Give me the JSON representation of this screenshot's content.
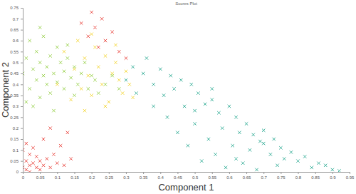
{
  "chart_data": {
    "type": "scatter",
    "title": "Scores Plot",
    "x_label": "Component 1",
    "y_label": "Component 2",
    "xlim": [
      0,
      0.95
    ],
    "ylim": [
      0,
      0.75
    ],
    "xticks": [
      0,
      0.05,
      0.1,
      0.15,
      0.2,
      0.25,
      0.3,
      0.35,
      0.4,
      0.45,
      0.5,
      0.55,
      0.6,
      0.65,
      0.7,
      0.75,
      0.8,
      0.85,
      0.9,
      0.95
    ],
    "yticks": [
      0,
      0.05,
      0.1,
      0.15,
      0.2,
      0.25,
      0.3,
      0.35,
      0.4,
      0.45,
      0.5,
      0.55,
      0.6,
      0.65,
      0.7,
      0.75
    ],
    "grid": false,
    "marker": "x",
    "series": [
      {
        "color": "#e8352e",
        "x": [
          0.0,
          0.0,
          0.01,
          0.01,
          0.01,
          0.02,
          0.02,
          0.02,
          0.03,
          0.03,
          0.04,
          0.04,
          0.05,
          0.05,
          0.06,
          0.07,
          0.08,
          0.09,
          0.1,
          0.12,
          0.14,
          0.06,
          0.08,
          0.11,
          0.13,
          0.17,
          0.19,
          0.2,
          0.21,
          0.22,
          0.24,
          0.26,
          0.28,
          0.3,
          0.23
        ],
        "values": [
          0.02,
          0.1,
          0.01,
          0.05,
          0.13,
          0.03,
          0.08,
          0.0,
          0.04,
          0.11,
          0.02,
          0.07,
          0.05,
          0.01,
          0.03,
          0.06,
          0.02,
          0.08,
          0.04,
          0.03,
          0.06,
          0.15,
          0.2,
          0.12,
          0.18,
          0.68,
          0.62,
          0.73,
          0.66,
          0.57,
          0.6,
          0.64,
          0.55,
          0.52,
          0.7
        ]
      },
      {
        "color": "#1fa58c",
        "x": [
          0.3,
          0.32,
          0.33,
          0.35,
          0.36,
          0.38,
          0.38,
          0.4,
          0.41,
          0.42,
          0.43,
          0.44,
          0.45,
          0.46,
          0.47,
          0.48,
          0.49,
          0.5,
          0.51,
          0.52,
          0.53,
          0.54,
          0.55,
          0.56,
          0.57,
          0.58,
          0.59,
          0.6,
          0.61,
          0.62,
          0.63,
          0.64,
          0.65,
          0.66,
          0.67,
          0.68,
          0.69,
          0.7,
          0.72,
          0.73,
          0.74,
          0.75,
          0.76,
          0.78,
          0.8,
          0.82,
          0.84,
          0.86,
          0.88,
          0.9,
          0.92,
          0.5,
          0.55,
          0.62,
          0.7
        ],
        "values": [
          0.42,
          0.48,
          0.36,
          0.45,
          0.52,
          0.4,
          0.3,
          0.47,
          0.35,
          0.25,
          0.44,
          0.38,
          0.18,
          0.42,
          0.3,
          0.12,
          0.4,
          0.22,
          0.36,
          0.05,
          0.31,
          0.15,
          0.33,
          0.08,
          0.27,
          0.2,
          0.02,
          0.3,
          0.12,
          0.25,
          0.18,
          0.04,
          0.22,
          0.1,
          0.17,
          0.01,
          0.14,
          0.19,
          0.08,
          0.15,
          0.03,
          0.11,
          0.06,
          0.09,
          0.05,
          0.07,
          0.02,
          0.04,
          0.03,
          0.01,
          0.005,
          0.28,
          0.38,
          0.06,
          0.13
        ]
      },
      {
        "color": "#f2d224",
        "x": [
          0.1,
          0.12,
          0.14,
          0.15,
          0.16,
          0.17,
          0.18,
          0.19,
          0.2,
          0.21,
          0.22,
          0.23,
          0.24,
          0.25,
          0.26,
          0.27,
          0.28,
          0.29,
          0.3,
          0.31,
          0.32,
          0.2,
          0.24,
          0.27,
          0.18
        ],
        "values": [
          0.4,
          0.55,
          0.33,
          0.47,
          0.6,
          0.38,
          0.52,
          0.44,
          0.35,
          0.57,
          0.48,
          0.4,
          0.53,
          0.32,
          0.45,
          0.5,
          0.42,
          0.36,
          0.46,
          0.4,
          0.34,
          0.63,
          0.3,
          0.58,
          0.28
        ]
      },
      {
        "color": "#8fcd3c",
        "x": [
          0.0,
          0.01,
          0.02,
          0.02,
          0.03,
          0.04,
          0.04,
          0.05,
          0.05,
          0.06,
          0.06,
          0.07,
          0.07,
          0.08,
          0.08,
          0.09,
          0.1,
          0.1,
          0.11,
          0.12,
          0.12,
          0.13,
          0.14,
          0.15,
          0.15,
          0.16,
          0.17,
          0.18,
          0.19,
          0.2,
          0.21,
          0.22,
          0.24,
          0.26,
          0.28,
          0.03,
          0.05,
          0.09,
          0.13,
          0.01
        ],
        "values": [
          0.45,
          0.52,
          0.38,
          0.6,
          0.47,
          0.42,
          0.55,
          0.34,
          0.5,
          0.44,
          0.62,
          0.4,
          0.48,
          0.53,
          0.36,
          0.45,
          0.41,
          0.57,
          0.5,
          0.38,
          0.46,
          0.52,
          0.43,
          0.35,
          0.48,
          0.4,
          0.45,
          0.5,
          0.38,
          0.44,
          0.42,
          0.36,
          0.4,
          0.44,
          0.38,
          0.3,
          0.66,
          0.28,
          0.58,
          0.32
        ]
      }
    ]
  }
}
